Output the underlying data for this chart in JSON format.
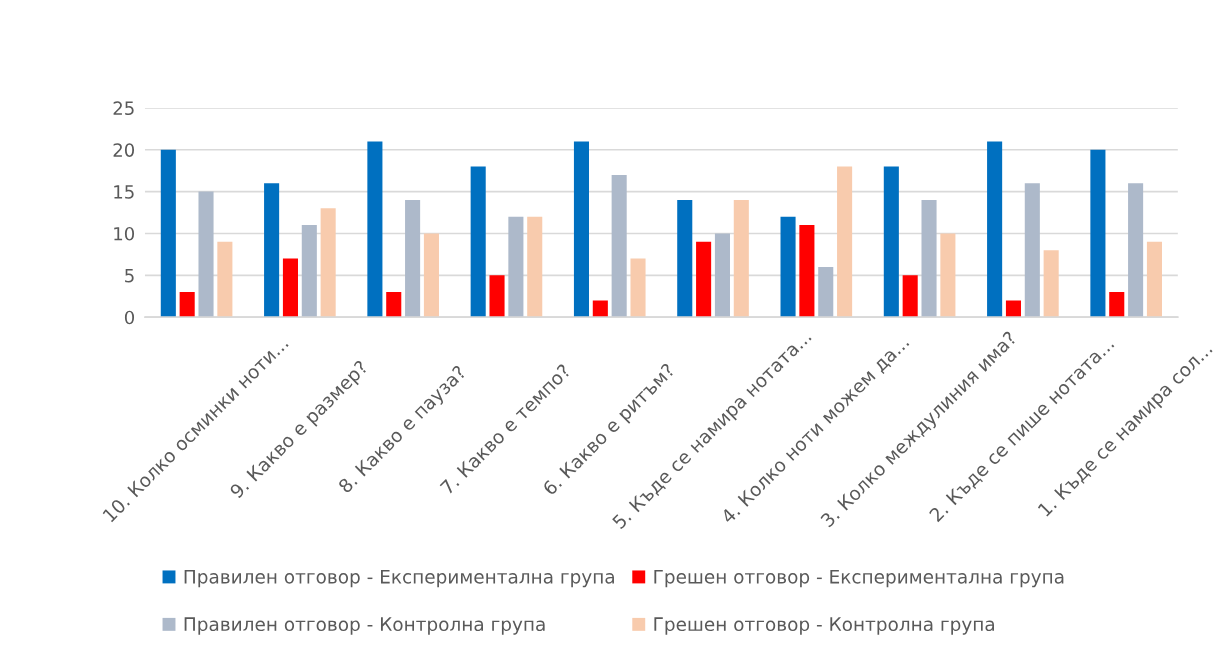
{
  "chart_data": {
    "type": "bar",
    "categories": [
      "10. Колко осминки ноти...",
      "9. Какво е размер?",
      "8. Какво е пауза?",
      "7. Какво е темпо?",
      "6. Какво е ритъм?",
      "5. Къде се намира нотата...",
      "4. Колко ноти можем да...",
      "3. Колко междулиния има?",
      "2. Къде се пише нотата...",
      "1. Къде се намира сол..."
    ],
    "series": [
      {
        "name": "Правилен отговор - Експериментална група",
        "color": "#0070c0",
        "values": [
          20,
          16,
          21,
          18,
          21,
          14,
          12,
          18,
          21,
          20
        ]
      },
      {
        "name": "Грешен отговор - Експериментална група",
        "color": "#ff0000",
        "values": [
          3,
          7,
          3,
          5,
          2,
          9,
          11,
          5,
          2,
          3
        ]
      },
      {
        "name": "Правилен отговор - Контролна група",
        "color": "#adb9ca",
        "values": [
          15,
          11,
          14,
          12,
          17,
          10,
          6,
          14,
          16,
          16
        ]
      },
      {
        "name": "Грешен отговор - Контролна група",
        "color": "#f8cbad",
        "values": [
          9,
          13,
          10,
          12,
          7,
          14,
          18,
          10,
          8,
          9
        ]
      }
    ],
    "ylim": [
      0,
      25
    ],
    "yticks": [
      0,
      5,
      10,
      15,
      20,
      25
    ],
    "grid": "y",
    "legend": "bottom"
  }
}
